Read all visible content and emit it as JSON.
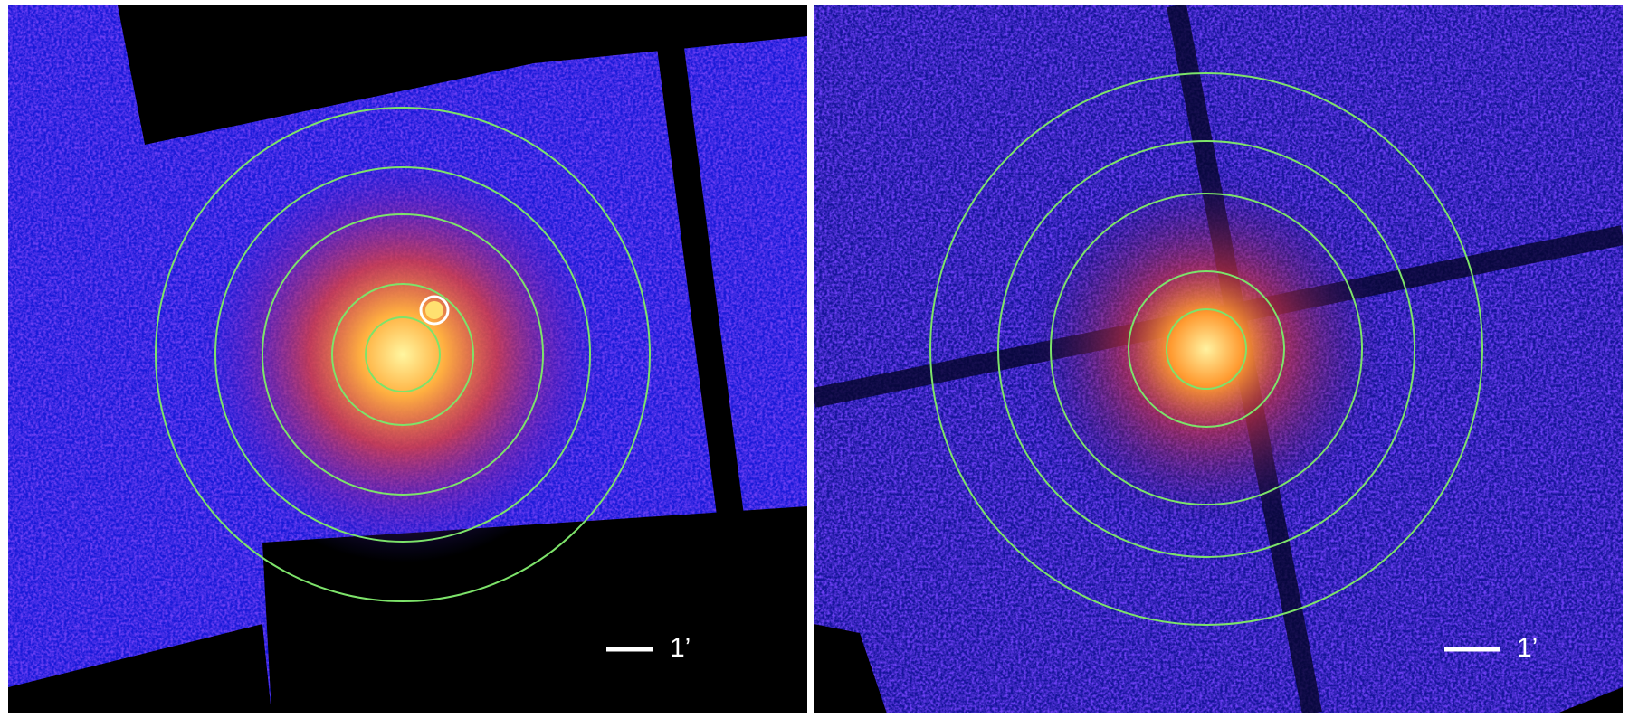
{
  "panels": [
    {
      "scale_label": "1’"
    },
    {
      "scale_label": "1’"
    }
  ]
}
